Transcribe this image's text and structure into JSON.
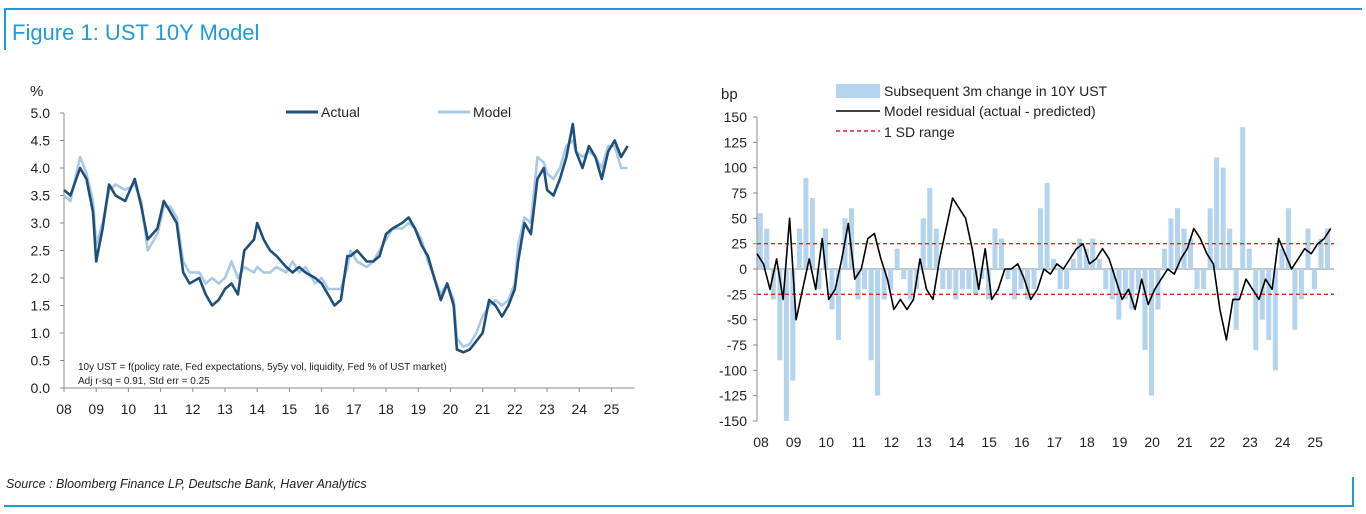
{
  "header": {
    "title": "Figure 1: UST 10Y Model"
  },
  "footer": {
    "source": "Source : Bloomberg Finance LP, Deutsche Bank, Haver Analytics"
  },
  "colors": {
    "accent": "#1f9bd7",
    "actual": "#1f4e79",
    "model": "#a9c8e8",
    "bars": "#b4d3ee",
    "residual": "#000000",
    "sd": "#e3241b"
  },
  "chart_data": [
    {
      "type": "line",
      "ylabel": "%",
      "ylim": [
        0.0,
        5.0
      ],
      "yticks": [
        "5.0",
        "4.5",
        "4.0",
        "3.5",
        "3.0",
        "2.5",
        "2.0",
        "1.5",
        "1.0",
        "0.5",
        "0.0"
      ],
      "xlim": [
        2008,
        2025.7
      ],
      "xticks": [
        "08",
        "09",
        "10",
        "11",
        "12",
        "13",
        "14",
        "15",
        "16",
        "17",
        "18",
        "19",
        "20",
        "21",
        "22",
        "23",
        "24",
        "25"
      ],
      "legend_position": "top",
      "annotations": [
        "10y UST = f(policy rate, Fed expectations, 5y5y vol, liquidity, Fed % of UST market)",
        "Adj r-sq = 0.91, Std err = 0.25"
      ],
      "series": [
        {
          "name": "Actual",
          "x": [
            2008.0,
            2008.2,
            2008.5,
            2008.7,
            2008.9,
            2009.0,
            2009.2,
            2009.4,
            2009.6,
            2009.9,
            2010.2,
            2010.4,
            2010.6,
            2010.9,
            2011.1,
            2011.3,
            2011.5,
            2011.7,
            2011.9,
            2012.2,
            2012.4,
            2012.6,
            2012.8,
            2013.0,
            2013.2,
            2013.4,
            2013.6,
            2013.9,
            2014.0,
            2014.2,
            2014.4,
            2014.6,
            2014.9,
            2015.1,
            2015.3,
            2015.5,
            2015.8,
            2016.0,
            2016.2,
            2016.4,
            2016.6,
            2016.8,
            2016.9,
            2017.1,
            2017.4,
            2017.6,
            2017.8,
            2018.0,
            2018.2,
            2018.5,
            2018.7,
            2018.9,
            2019.1,
            2019.3,
            2019.5,
            2019.7,
            2019.9,
            2020.1,
            2020.2,
            2020.4,
            2020.6,
            2020.8,
            2021.0,
            2021.2,
            2021.4,
            2021.6,
            2021.8,
            2022.0,
            2022.1,
            2022.3,
            2022.5,
            2022.7,
            2022.9,
            2023.0,
            2023.2,
            2023.4,
            2023.6,
            2023.8,
            2023.9,
            2024.1,
            2024.3,
            2024.5,
            2024.7,
            2024.9,
            2025.1,
            2025.3,
            2025.5
          ],
          "values": [
            3.6,
            3.5,
            4.0,
            3.8,
            3.2,
            2.3,
            2.9,
            3.7,
            3.5,
            3.4,
            3.8,
            3.3,
            2.7,
            2.9,
            3.4,
            3.2,
            3.0,
            2.1,
            1.9,
            2.0,
            1.7,
            1.5,
            1.6,
            1.8,
            1.9,
            1.7,
            2.5,
            2.7,
            3.0,
            2.7,
            2.5,
            2.4,
            2.2,
            2.1,
            2.2,
            2.1,
            2.0,
            1.9,
            1.7,
            1.5,
            1.6,
            2.4,
            2.4,
            2.5,
            2.3,
            2.3,
            2.4,
            2.8,
            2.9,
            3.0,
            3.1,
            2.9,
            2.6,
            2.4,
            2.0,
            1.6,
            1.9,
            1.5,
            0.7,
            0.65,
            0.7,
            0.85,
            1.0,
            1.6,
            1.5,
            1.3,
            1.5,
            1.8,
            2.3,
            3.0,
            2.8,
            3.8,
            4.0,
            3.6,
            3.5,
            3.8,
            4.2,
            4.8,
            4.3,
            4.0,
            4.4,
            4.2,
            3.8,
            4.3,
            4.5,
            4.2,
            4.4
          ]
        },
        {
          "name": "Model",
          "x": [
            2008.0,
            2008.2,
            2008.5,
            2008.7,
            2008.9,
            2009.0,
            2009.2,
            2009.4,
            2009.6,
            2009.9,
            2010.2,
            2010.4,
            2010.6,
            2010.9,
            2011.1,
            2011.3,
            2011.5,
            2011.7,
            2011.9,
            2012.2,
            2012.4,
            2012.6,
            2012.8,
            2013.0,
            2013.2,
            2013.4,
            2013.6,
            2013.9,
            2014.0,
            2014.2,
            2014.4,
            2014.6,
            2014.9,
            2015.1,
            2015.3,
            2015.5,
            2015.8,
            2016.0,
            2016.2,
            2016.4,
            2016.6,
            2016.8,
            2016.9,
            2017.1,
            2017.4,
            2017.6,
            2017.8,
            2018.0,
            2018.2,
            2018.5,
            2018.7,
            2018.9,
            2019.1,
            2019.3,
            2019.5,
            2019.7,
            2019.9,
            2020.1,
            2020.2,
            2020.4,
            2020.6,
            2020.8,
            2021.0,
            2021.2,
            2021.4,
            2021.6,
            2021.8,
            2022.0,
            2022.1,
            2022.3,
            2022.5,
            2022.7,
            2022.9,
            2023.0,
            2023.2,
            2023.4,
            2023.6,
            2023.8,
            2023.9,
            2024.1,
            2024.3,
            2024.5,
            2024.7,
            2024.9,
            2025.1,
            2025.3,
            2025.5
          ],
          "values": [
            3.5,
            3.4,
            4.2,
            3.9,
            3.4,
            2.6,
            3.0,
            3.6,
            3.7,
            3.6,
            3.7,
            3.4,
            2.5,
            2.8,
            3.3,
            3.3,
            3.1,
            2.3,
            2.1,
            2.1,
            1.9,
            2.0,
            1.9,
            2.0,
            2.3,
            2.0,
            2.2,
            2.1,
            2.2,
            2.1,
            2.1,
            2.2,
            2.1,
            2.3,
            2.1,
            2.2,
            1.9,
            2.0,
            1.8,
            1.8,
            1.8,
            2.2,
            2.5,
            2.3,
            2.2,
            2.3,
            2.5,
            2.7,
            2.9,
            2.9,
            3.0,
            2.9,
            2.7,
            2.3,
            2.0,
            1.7,
            1.9,
            1.6,
            0.9,
            0.75,
            0.8,
            1.0,
            1.3,
            1.5,
            1.6,
            1.5,
            1.6,
            1.9,
            2.6,
            3.1,
            3.0,
            4.2,
            4.1,
            3.9,
            3.8,
            4.0,
            4.4,
            4.5,
            4.3,
            4.2,
            4.3,
            4.2,
            4.0,
            4.4,
            4.4,
            4.0,
            4.0
          ]
        }
      ]
    },
    {
      "type": "bar",
      "ylabel": "bp",
      "ylim": [
        -150,
        150
      ],
      "yticks": [
        "150",
        "125",
        "100",
        "75",
        "50",
        "25",
        "0",
        "-25",
        "-50",
        "-75",
        "-100",
        "-125",
        "-150"
      ],
      "xlim": [
        2008,
        2025.7
      ],
      "xticks": [
        "08",
        "09",
        "10",
        "11",
        "12",
        "13",
        "14",
        "15",
        "16",
        "17",
        "18",
        "19",
        "20",
        "21",
        "22",
        "23",
        "24",
        "25"
      ],
      "legend_position": "top",
      "series": [
        {
          "name": "Subsequent 3m change in 10Y UST",
          "type": "bar",
          "x": [
            2008.1,
            2008.3,
            2008.5,
            2008.7,
            2008.9,
            2009.1,
            2009.3,
            2009.5,
            2009.7,
            2009.9,
            2010.1,
            2010.3,
            2010.5,
            2010.7,
            2010.9,
            2011.1,
            2011.3,
            2011.5,
            2011.7,
            2011.9,
            2012.1,
            2012.3,
            2012.5,
            2012.7,
            2012.9,
            2013.1,
            2013.3,
            2013.5,
            2013.7,
            2013.9,
            2014.1,
            2014.3,
            2014.5,
            2014.7,
            2014.9,
            2015.1,
            2015.3,
            2015.5,
            2015.7,
            2015.9,
            2016.1,
            2016.3,
            2016.5,
            2016.7,
            2016.9,
            2017.1,
            2017.3,
            2017.5,
            2017.7,
            2017.9,
            2018.1,
            2018.3,
            2018.5,
            2018.7,
            2018.9,
            2019.1,
            2019.3,
            2019.5,
            2019.7,
            2019.9,
            2020.1,
            2020.3,
            2020.5,
            2020.7,
            2020.9,
            2021.1,
            2021.3,
            2021.5,
            2021.7,
            2021.9,
            2022.1,
            2022.3,
            2022.5,
            2022.7,
            2022.9,
            2023.1,
            2023.3,
            2023.5,
            2023.7,
            2023.9,
            2024.1,
            2024.3,
            2024.5,
            2024.7,
            2024.9,
            2025.1,
            2025.3,
            2025.5
          ],
          "values": [
            55,
            40,
            -30,
            -90,
            -150,
            -110,
            40,
            90,
            70,
            -20,
            40,
            -40,
            -70,
            50,
            60,
            -30,
            -20,
            -90,
            -125,
            -30,
            -20,
            20,
            -10,
            -30,
            -20,
            50,
            80,
            40,
            -20,
            -20,
            -30,
            -20,
            -20,
            -25,
            -10,
            -30,
            40,
            30,
            -10,
            -30,
            -20,
            -30,
            -20,
            60,
            85,
            10,
            -20,
            -20,
            10,
            30,
            20,
            30,
            10,
            -20,
            -30,
            -50,
            -30,
            -40,
            -20,
            -80,
            -125,
            -40,
            20,
            50,
            60,
            40,
            30,
            -20,
            -20,
            60,
            110,
            100,
            40,
            -60,
            140,
            20,
            -80,
            -50,
            -70,
            -100,
            20,
            60,
            -60,
            -30,
            40,
            -20,
            30,
            40
          ]
        },
        {
          "name": "Model residual (actual - predicted)",
          "type": "line",
          "x": [
            2008.0,
            2008.2,
            2008.4,
            2008.6,
            2008.8,
            2009.0,
            2009.2,
            2009.4,
            2009.6,
            2009.8,
            2010.0,
            2010.2,
            2010.4,
            2010.6,
            2010.8,
            2011.0,
            2011.2,
            2011.4,
            2011.6,
            2011.8,
            2012.0,
            2012.2,
            2012.4,
            2012.6,
            2012.8,
            2013.0,
            2013.2,
            2013.4,
            2013.6,
            2013.8,
            2014.0,
            2014.2,
            2014.4,
            2014.6,
            2014.8,
            2015.0,
            2015.2,
            2015.4,
            2015.6,
            2015.8,
            2016.0,
            2016.2,
            2016.4,
            2016.6,
            2016.8,
            2017.0,
            2017.2,
            2017.4,
            2017.6,
            2017.8,
            2018.0,
            2018.2,
            2018.4,
            2018.6,
            2018.8,
            2019.0,
            2019.2,
            2019.4,
            2019.6,
            2019.8,
            2020.0,
            2020.2,
            2020.4,
            2020.6,
            2020.8,
            2021.0,
            2021.2,
            2021.4,
            2021.6,
            2021.8,
            2022.0,
            2022.2,
            2022.4,
            2022.6,
            2022.8,
            2023.0,
            2023.2,
            2023.4,
            2023.6,
            2023.8,
            2024.0,
            2024.2,
            2024.4,
            2024.6,
            2024.8,
            2025.0,
            2025.2,
            2025.4,
            2025.6
          ],
          "values": [
            15,
            5,
            -20,
            10,
            -30,
            50,
            -50,
            -20,
            10,
            -20,
            30,
            -30,
            -20,
            10,
            45,
            -10,
            0,
            30,
            35,
            10,
            -10,
            -40,
            -30,
            -40,
            -30,
            10,
            -20,
            -30,
            10,
            40,
            70,
            60,
            50,
            20,
            -20,
            20,
            -30,
            -20,
            0,
            0,
            5,
            -10,
            -30,
            -20,
            0,
            -5,
            5,
            0,
            10,
            20,
            25,
            5,
            10,
            20,
            10,
            -10,
            -30,
            -20,
            -40,
            -10,
            -35,
            -20,
            -10,
            0,
            -5,
            10,
            20,
            40,
            30,
            15,
            5,
            -40,
            -70,
            -30,
            -30,
            -10,
            -20,
            -30,
            -10,
            -20,
            30,
            15,
            0,
            10,
            20,
            15,
            25,
            30,
            40
          ]
        },
        {
          "name": "1 SD range",
          "type": "hline",
          "values": [
            25,
            -25
          ]
        }
      ]
    }
  ]
}
